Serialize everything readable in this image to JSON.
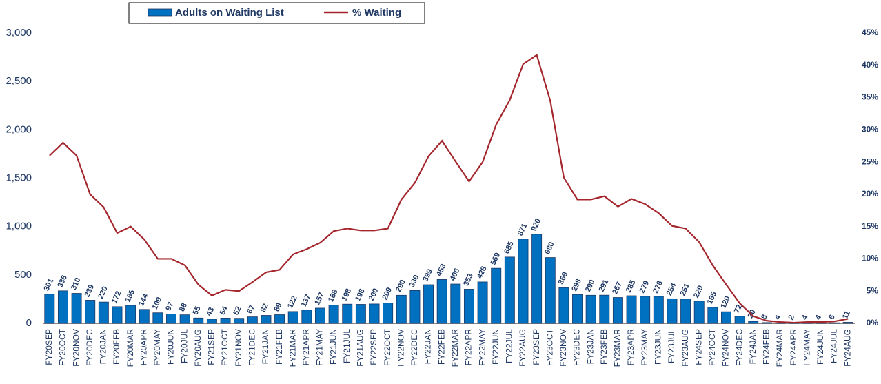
{
  "chart_data": {
    "type": "bar",
    "categories": [
      "FY20SEP",
      "FY20OCT",
      "FY20NOV",
      "FY20DEC",
      "FY20JAN",
      "FY20FEB",
      "FY20MAR",
      "FY20APR",
      "FY20MAY",
      "FY20JUN",
      "FY20JUL",
      "FY20AUG",
      "FY21SEP",
      "FY21OCT",
      "FY21NOV",
      "FY21DEC",
      "FY21JAN",
      "FY21FEB",
      "FY21MAR",
      "FY21APR",
      "FY21MAY",
      "FY21JUN",
      "FY21JUL",
      "FY21AUG",
      "FY22SEP",
      "FY22OCT",
      "FY22NOV",
      "FY22DEC",
      "FY22JAN",
      "FY22FEB",
      "FY22MAR",
      "FY22APR",
      "FY22MAY",
      "FY22JUN",
      "FY22JUL",
      "FY22AUG",
      "FY23SEP",
      "FY23OCT",
      "FY23NOV",
      "FY23DEC",
      "FY23JAN",
      "FY23FEB",
      "FY23MAR",
      "FY23APR",
      "FY23MAY",
      "FY23JUN",
      "FY23JUL",
      "FY23AUG",
      "FY24SEP",
      "FY24OCT",
      "FY24NOV",
      "FY24DEC",
      "FY24JAN",
      "FY24FEB",
      "FY24MAR",
      "FY24APR",
      "FY24MAY",
      "FY24JUN",
      "FY24JUL",
      "FY24AUG"
    ],
    "series": [
      {
        "name": "Adults on Waiting List",
        "type": "bar",
        "color": "#0070c0",
        "values": [
          301,
          336,
          310,
          239,
          220,
          172,
          185,
          144,
          109,
          97,
          88,
          55,
          43,
          54,
          52,
          67,
          82,
          89,
          122,
          137,
          157,
          188,
          198,
          196,
          200,
          209,
          290,
          339,
          399,
          453,
          406,
          353,
          428,
          569,
          685,
          871,
          920,
          680,
          369,
          298,
          290,
          291,
          267,
          285,
          279,
          278,
          254,
          251,
          229,
          165,
          120,
          72,
          20,
          8,
          4,
          2,
          4,
          4,
          6,
          11
        ]
      },
      {
        "name": "% Waiting",
        "type": "line",
        "axis": "y2",
        "color": "#a4262c",
        "values": [
          26,
          28,
          26,
          20,
          18,
          14,
          15,
          13,
          10,
          10,
          9,
          6,
          4.3,
          5.2,
          5,
          6.4,
          7.9,
          8.3,
          10.7,
          11.5,
          12.5,
          14.3,
          14.7,
          14.4,
          14.4,
          14.7,
          19.2,
          21.8,
          25.9,
          28.3,
          25.1,
          22,
          25,
          30.8,
          34.6,
          40.2,
          41.6,
          34.5,
          22.6,
          19.2,
          19.2,
          19.7,
          18.1,
          19.3,
          18.5,
          17.1,
          15.1,
          14.7,
          12.6,
          9,
          6,
          3.1,
          1.1,
          0.4,
          0.2,
          0.1,
          0.2,
          0.2,
          0.3,
          0.7
        ]
      }
    ],
    "ylim": [
      0,
      3000
    ],
    "yticks": [
      0,
      500,
      {
        "value": 1000,
        "label": "1,000"
      },
      {
        "value": 1500,
        "label": "1,500"
      },
      {
        "value": 2000,
        "label": "2,000"
      },
      {
        "value": 2500,
        "label": "2,500"
      },
      {
        "value": 3000,
        "label": "3,000"
      }
    ],
    "y2lim": [
      0,
      45
    ],
    "y2ticks": [
      {
        "value": 0,
        "label": "0%"
      },
      {
        "value": 5,
        "label": "5%"
      },
      {
        "value": 10,
        "label": "10%"
      },
      {
        "value": 15,
        "label": "15%"
      },
      {
        "value": 20,
        "label": "20%"
      },
      {
        "value": 25,
        "label": "25%"
      },
      {
        "value": 30,
        "label": "30%"
      },
      {
        "value": 35,
        "label": "35%"
      },
      {
        "value": 40,
        "label": "40%"
      },
      {
        "value": 45,
        "label": "45%"
      }
    ],
    "legend": "top"
  }
}
